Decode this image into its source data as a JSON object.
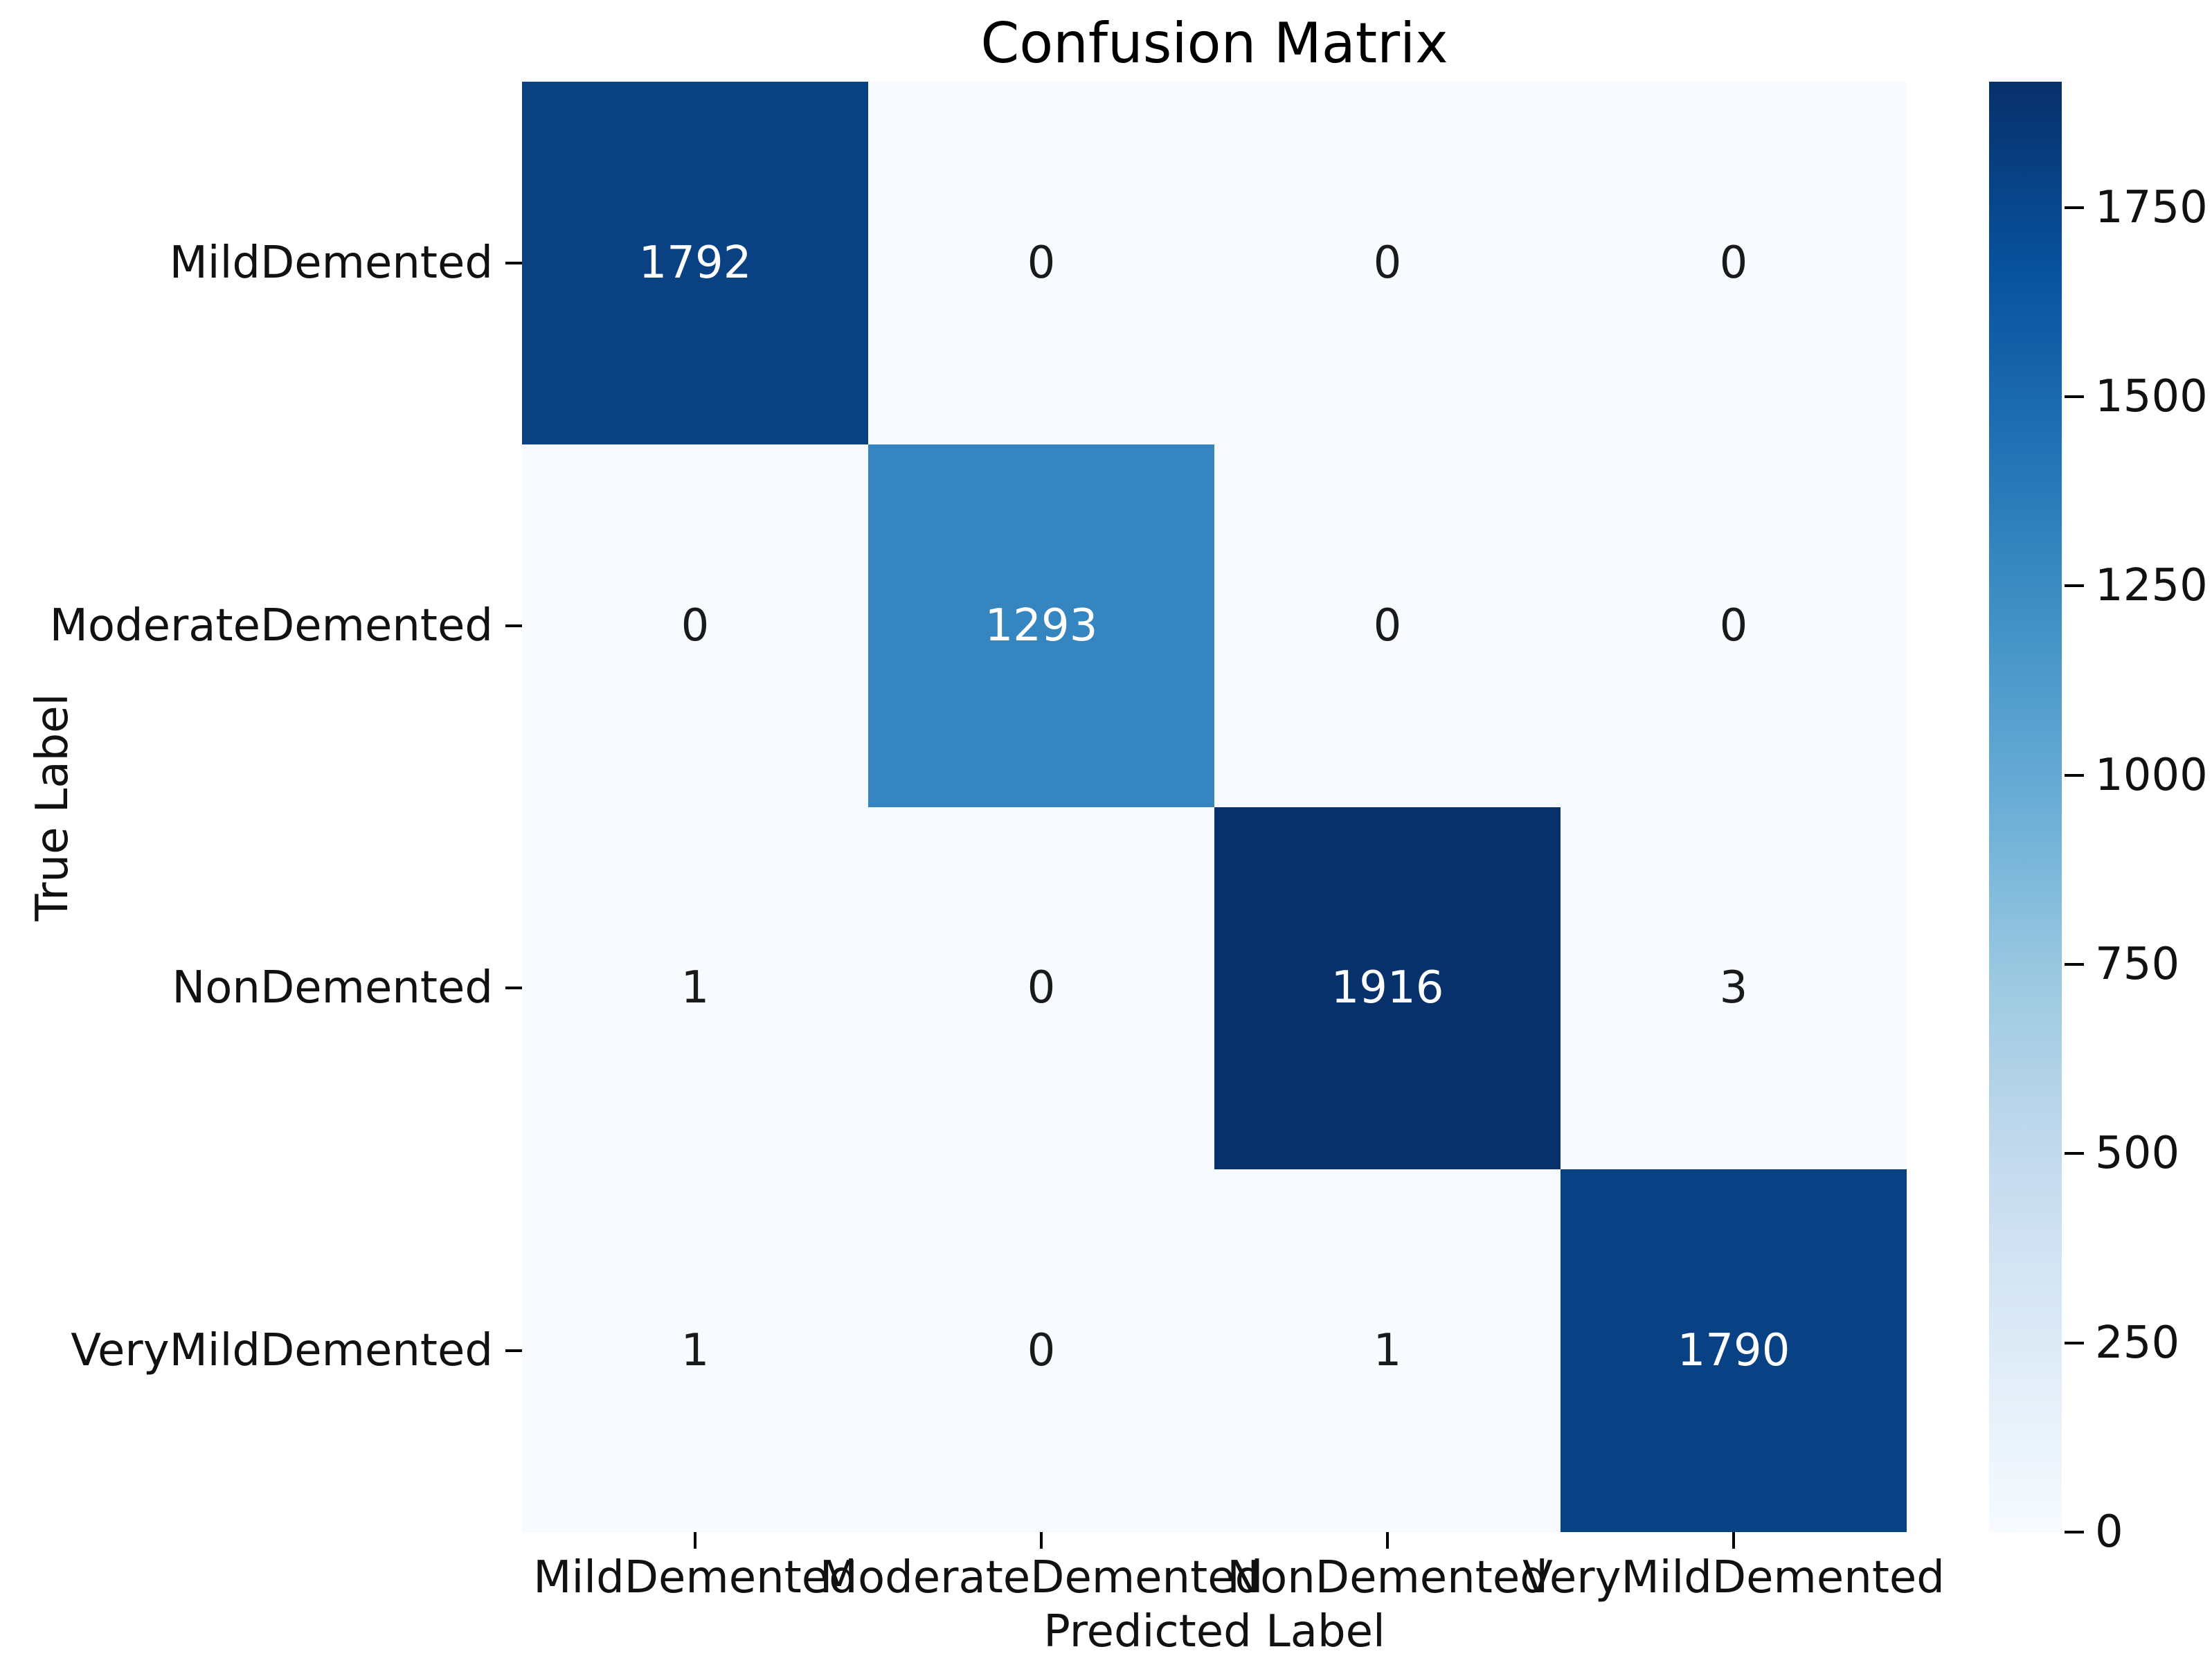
{
  "page": {
    "background": "#ffffff"
  },
  "chart_data": {
    "type": "heatmap",
    "title": "Confusion Matrix",
    "xlabel": "Predicted Label",
    "ylabel": "True Label",
    "categories": [
      "MildDemented",
      "ModerateDemented",
      "NonDemented",
      "VeryMildDemented"
    ],
    "x_tick_labels": [
      "MildDemented",
      "ModerateDemented",
      "NonDemented",
      "VeryMildDemented"
    ],
    "y_tick_labels": [
      "MildDemented",
      "ModerateDemented",
      "NonDemented",
      "VeryMildDemented"
    ],
    "matrix": [
      [
        1792,
        0,
        0,
        0
      ],
      [
        0,
        1293,
        0,
        0
      ],
      [
        1,
        0,
        1916,
        3
      ],
      [
        1,
        0,
        1,
        1790
      ]
    ],
    "vmin": 0,
    "vmax": 1916,
    "colormap": "Blues",
    "cell_colors": [
      [
        "#094183",
        "#f7fbff",
        "#f7fbff",
        "#f7fbff"
      ],
      [
        "#f7fbff",
        "#3585c0",
        "#f7fbff",
        "#f7fbff"
      ],
      [
        "#f7fbff",
        "#f7fbff",
        "#08306b",
        "#f6fafe"
      ],
      [
        "#f7fbff",
        "#f7fbff",
        "#f7fbff",
        "#094284"
      ]
    ],
    "annot_color_dark": "#1a1a1a",
    "annot_color_light": "#ffffff",
    "grid_on": false,
    "colorbar": {
      "position": "right",
      "ticks": [
        0,
        250,
        500,
        750,
        1000,
        1250,
        1500,
        1750
      ],
      "gradient_stops": [
        {
          "pct": 0,
          "color": "#f7fbff"
        },
        {
          "pct": 12.5,
          "color": "#deebf7"
        },
        {
          "pct": 25,
          "color": "#c6dbef"
        },
        {
          "pct": 37.5,
          "color": "#9ecae1"
        },
        {
          "pct": 50,
          "color": "#6baed6"
        },
        {
          "pct": 62.5,
          "color": "#4292c6"
        },
        {
          "pct": 75,
          "color": "#2171b5"
        },
        {
          "pct": 87.5,
          "color": "#08519c"
        },
        {
          "pct": 100,
          "color": "#08306b"
        }
      ]
    }
  }
}
